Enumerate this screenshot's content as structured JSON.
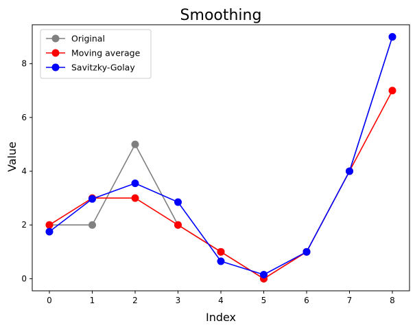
{
  "chart_data": {
    "type": "line",
    "title": "Smoothing",
    "xlabel": "Index",
    "ylabel": "Value",
    "x": [
      0,
      1,
      2,
      3,
      4,
      5,
      6,
      7,
      8
    ],
    "xlim": [
      -0.4,
      8.4
    ],
    "ylim": [
      -0.45,
      9.45
    ],
    "xticks": [
      0,
      1,
      2,
      3,
      4,
      5,
      6,
      7,
      8
    ],
    "yticks": [
      0,
      2,
      4,
      6,
      8
    ],
    "grid": false,
    "legend_position": "upper-left",
    "series": [
      {
        "name": "Original",
        "color": "#808080",
        "values": [
          2,
          2,
          5,
          2,
          1,
          0,
          1,
          4,
          9
        ]
      },
      {
        "name": "Moving average",
        "color": "#ff0000",
        "values": [
          2,
          3,
          3,
          2,
          1,
          0,
          1,
          4,
          7
        ]
      },
      {
        "name": "Savitzky-Golay",
        "color": "#0000ff",
        "values": [
          1.75,
          2.97,
          3.55,
          2.85,
          0.65,
          0.15,
          1.0,
          4.0,
          9.0
        ]
      }
    ]
  }
}
